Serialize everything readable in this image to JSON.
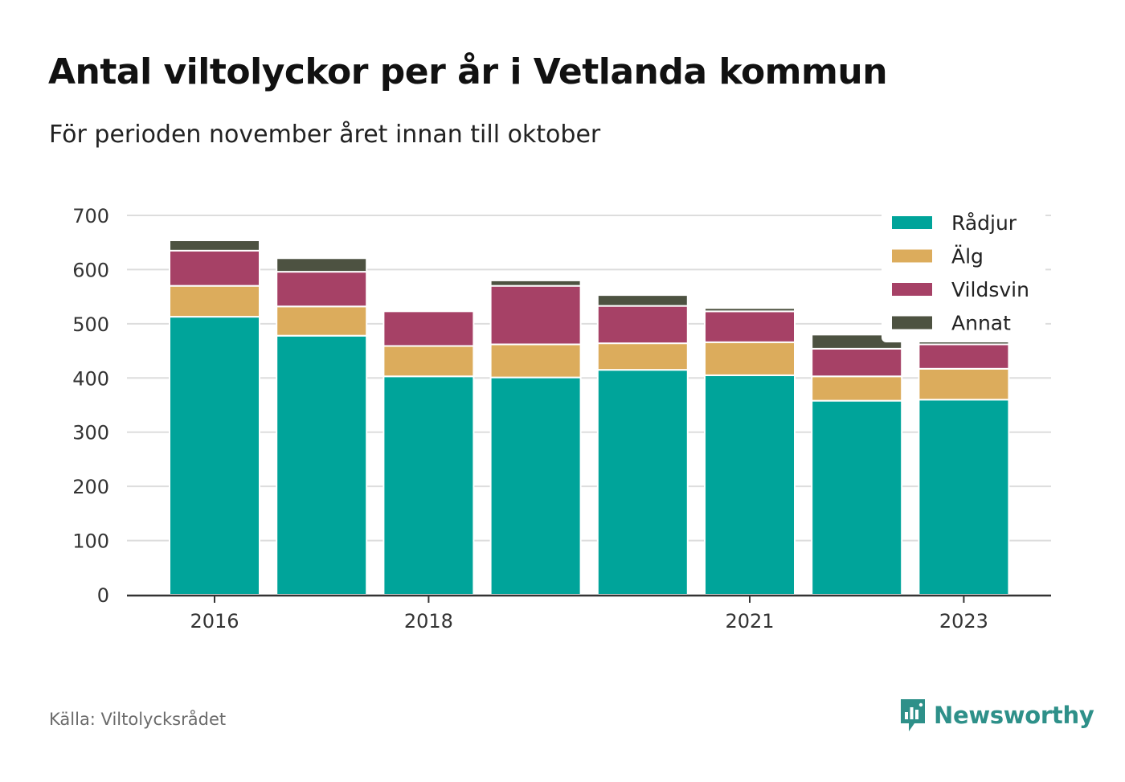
{
  "title": "Antal viltolyckor per år i Vetlanda kommun",
  "subtitle": "För perioden november året innan till oktober",
  "source": "Källa: Viltolycksrådet",
  "brand": "Newsworthy",
  "colors": {
    "radjur": "#00a49a",
    "alg": "#dcac5c",
    "vildsvin": "#a64166",
    "annat": "#4d5241",
    "grid": "#dddddd",
    "axis": "#333333",
    "brand": "#2e9089"
  },
  "chart_data": {
    "type": "bar",
    "stacked": true,
    "categories": [
      "2016",
      "2017",
      "2018",
      "2019",
      "2020",
      "2021",
      "2022",
      "2023"
    ],
    "x_tick_labels": [
      "2016",
      "2018",
      "2021",
      "2023"
    ],
    "series": [
      {
        "name": "Rådjur",
        "values": [
          513,
          478,
          403,
          401,
          415,
          405,
          358,
          360
        ]
      },
      {
        "name": "Älg",
        "values": [
          57,
          54,
          56,
          61,
          49,
          61,
          45,
          57
        ]
      },
      {
        "name": "Vildsvin",
        "values": [
          65,
          64,
          64,
          108,
          69,
          57,
          51,
          45
        ]
      },
      {
        "name": "Annat",
        "values": [
          19,
          25,
          0,
          10,
          20,
          6,
          26,
          10
        ]
      }
    ],
    "ylim": [
      0,
      700
    ],
    "y_ticks": [
      0,
      100,
      200,
      300,
      400,
      500,
      600,
      700
    ],
    "grid": true,
    "legend_position": "top-right"
  }
}
